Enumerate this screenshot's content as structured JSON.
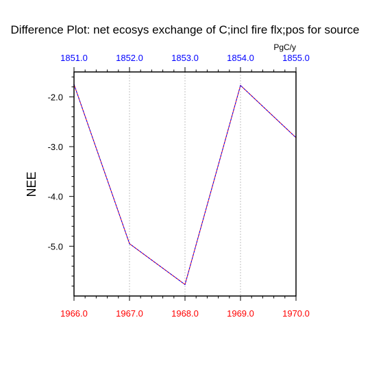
{
  "chart_data": {
    "type": "line",
    "title": "Difference Plot: net ecosys exchange of C;incl fire flx;pos for source",
    "ylabel": "NEE",
    "units": "PgC/y",
    "x_bottom": {
      "ticks": [
        1966,
        1967,
        1968,
        1969,
        1970
      ],
      "tick_labels": [
        "1966.0",
        "1967.0",
        "1968.0",
        "1969.0",
        "1970.0"
      ],
      "range": [
        1966,
        1970
      ],
      "color": "#ff0000"
    },
    "x_top": {
      "tick_labels": [
        "1851.0",
        "1852.0",
        "1853.0",
        "1854.0",
        "1855.0"
      ],
      "color": "#0000ff"
    },
    "y": {
      "ticks": [
        -2,
        -3,
        -4,
        -5
      ],
      "tick_labels": [
        "-2.0",
        "-3.0",
        "-4.0",
        "-5.0"
      ],
      "range": [
        -6.0,
        -1.5
      ]
    },
    "grid": "vertical-dashed",
    "series": [
      {
        "color": "#ff0000",
        "dash": "solid",
        "x": [
          1966,
          1967,
          1968,
          1969,
          1970
        ],
        "values": [
          -1.75,
          -4.95,
          -5.77,
          -1.77,
          -2.82
        ]
      },
      {
        "color": "#0000ff",
        "dash": "dashed",
        "x": [
          1966,
          1967,
          1968,
          1969,
          1970
        ],
        "values": [
          -1.75,
          -4.95,
          -5.77,
          -1.77,
          -2.82
        ]
      }
    ]
  }
}
